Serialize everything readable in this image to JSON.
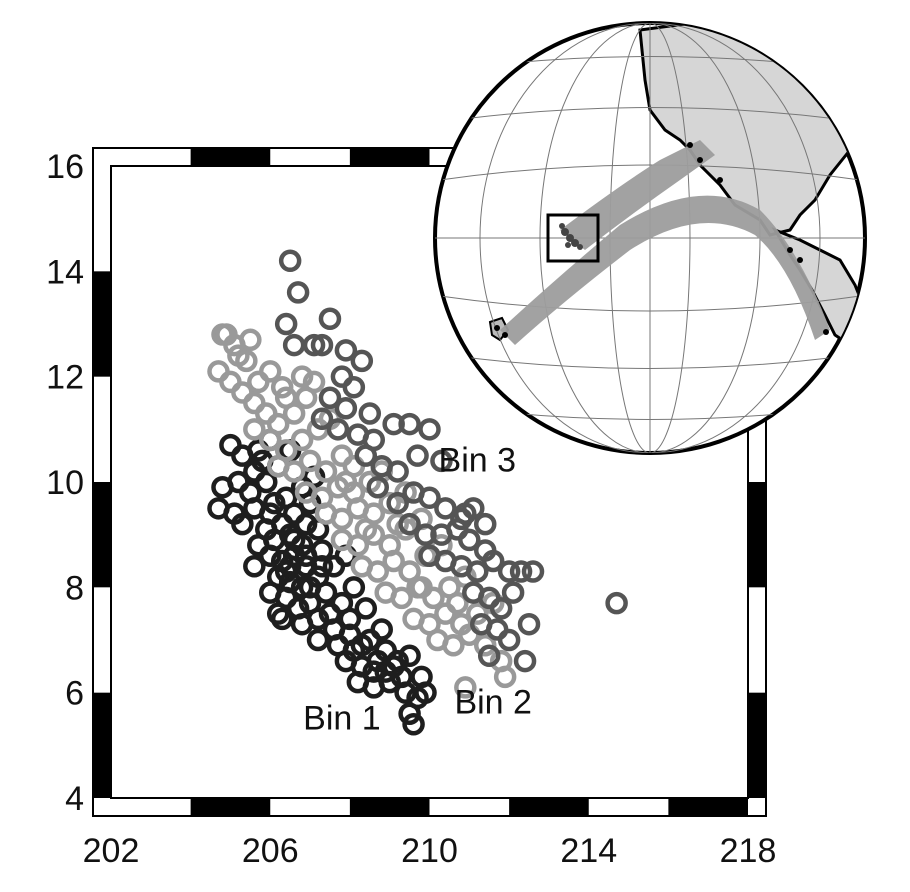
{
  "chart_data": {
    "type": "scatter",
    "title": "",
    "xlabel": "",
    "ylabel": "",
    "xlim": [
      202,
      218
    ],
    "ylim": [
      4,
      16
    ],
    "x_ticks": [
      "202",
      "206",
      "210",
      "214",
      "218"
    ],
    "y_ticks": [
      "4",
      "6",
      "8",
      "10",
      "12",
      "14",
      "16"
    ],
    "grid": false,
    "legend": "none",
    "marker": "open-circle",
    "annotations": [
      {
        "text": "Bin 1",
        "x": 207.8,
        "y": 5.3
      },
      {
        "text": "Bin 2",
        "x": 211.6,
        "y": 5.6
      },
      {
        "text": "Bin 3",
        "x": 211.2,
        "y": 10.2
      }
    ],
    "series": [
      {
        "color": "#1e1e1e",
        "points": [
          [
            205.0,
            10.7
          ],
          [
            205.3,
            10.5
          ],
          [
            205.6,
            10.2
          ],
          [
            205.2,
            10.0
          ],
          [
            204.8,
            9.9
          ],
          [
            205.5,
            9.8
          ],
          [
            205.9,
            10.0
          ],
          [
            206.2,
            10.3
          ],
          [
            205.7,
            10.6
          ],
          [
            206.0,
            10.8
          ],
          [
            204.7,
            9.5
          ],
          [
            205.1,
            9.4
          ],
          [
            205.6,
            9.5
          ],
          [
            206.0,
            9.4
          ],
          [
            206.4,
            9.7
          ],
          [
            206.8,
            9.9
          ],
          [
            205.9,
            9.1
          ],
          [
            206.3,
            9.2
          ],
          [
            206.6,
            9.4
          ],
          [
            207.0,
            9.6
          ],
          [
            205.7,
            8.8
          ],
          [
            206.1,
            8.9
          ],
          [
            206.5,
            9.0
          ],
          [
            206.8,
            8.8
          ],
          [
            207.2,
            9.1
          ],
          [
            206.0,
            8.6
          ],
          [
            206.3,
            8.5
          ],
          [
            206.6,
            8.6
          ],
          [
            206.9,
            8.4
          ],
          [
            207.3,
            8.7
          ],
          [
            205.6,
            8.4
          ],
          [
            206.2,
            8.2
          ],
          [
            206.5,
            8.1
          ],
          [
            206.8,
            8.0
          ],
          [
            207.2,
            8.2
          ],
          [
            207.6,
            8.4
          ],
          [
            207.9,
            8.6
          ],
          [
            206.0,
            7.9
          ],
          [
            206.4,
            7.8
          ],
          [
            206.7,
            7.6
          ],
          [
            207.0,
            7.7
          ],
          [
            207.4,
            7.9
          ],
          [
            207.8,
            7.7
          ],
          [
            208.1,
            8.0
          ],
          [
            206.3,
            7.4
          ],
          [
            206.8,
            7.3
          ],
          [
            207.2,
            7.4
          ],
          [
            207.6,
            7.2
          ],
          [
            208.0,
            7.4
          ],
          [
            208.4,
            7.6
          ],
          [
            207.2,
            7.0
          ],
          [
            207.7,
            6.9
          ],
          [
            208.1,
            6.8
          ],
          [
            208.5,
            7.0
          ],
          [
            208.9,
            6.8
          ],
          [
            207.9,
            6.6
          ],
          [
            208.3,
            6.5
          ],
          [
            208.7,
            6.6
          ],
          [
            209.1,
            6.5
          ],
          [
            209.5,
            6.7
          ],
          [
            208.2,
            6.2
          ],
          [
            208.6,
            6.1
          ],
          [
            209.0,
            6.2
          ],
          [
            209.4,
            6.0
          ],
          [
            209.8,
            6.3
          ],
          [
            209.5,
            5.6
          ],
          [
            209.7,
            5.9
          ],
          [
            208.9,
            6.4
          ],
          [
            209.3,
            6.3
          ],
          [
            209.9,
            6.0
          ],
          [
            206.4,
            8.3
          ],
          [
            206.6,
            8.9
          ],
          [
            206.9,
            9.2
          ],
          [
            207.3,
            8.4
          ],
          [
            205.3,
            9.2
          ],
          [
            205.8,
            10.4
          ],
          [
            206.5,
            10.6
          ],
          [
            207.1,
            10.1
          ],
          [
            206.2,
            7.5
          ],
          [
            207.5,
            7.5
          ],
          [
            208.8,
            7.2
          ],
          [
            208.0,
            7.1
          ],
          [
            206.9,
            8.6
          ],
          [
            206.5,
            8.4
          ],
          [
            207.0,
            8.0
          ],
          [
            208.3,
            6.9
          ],
          [
            208.6,
            6.4
          ],
          [
            209.2,
            6.6
          ],
          [
            209.6,
            5.4
          ],
          [
            206.1,
            9.6
          ]
        ]
      },
      {
        "color": "#999999",
        "points": [
          [
            204.8,
            12.8
          ],
          [
            205.1,
            12.6
          ],
          [
            205.4,
            12.3
          ],
          [
            204.7,
            12.1
          ],
          [
            205.0,
            11.9
          ],
          [
            205.3,
            11.7
          ],
          [
            205.7,
            11.9
          ],
          [
            206.0,
            12.1
          ],
          [
            206.3,
            11.8
          ],
          [
            205.6,
            11.5
          ],
          [
            205.9,
            11.3
          ],
          [
            206.2,
            11.1
          ],
          [
            206.6,
            11.3
          ],
          [
            206.9,
            11.6
          ],
          [
            205.6,
            11.0
          ],
          [
            206.0,
            10.8
          ],
          [
            206.4,
            10.6
          ],
          [
            206.8,
            10.8
          ],
          [
            207.2,
            11.0
          ],
          [
            207.5,
            11.2
          ],
          [
            206.2,
            10.3
          ],
          [
            206.6,
            10.2
          ],
          [
            207.0,
            10.4
          ],
          [
            207.4,
            10.2
          ],
          [
            207.8,
            10.5
          ],
          [
            208.1,
            10.3
          ],
          [
            206.9,
            9.8
          ],
          [
            207.3,
            9.7
          ],
          [
            207.7,
            9.9
          ],
          [
            208.1,
            9.8
          ],
          [
            208.5,
            10.0
          ],
          [
            208.8,
            10.2
          ],
          [
            207.4,
            9.4
          ],
          [
            207.8,
            9.3
          ],
          [
            208.2,
            9.5
          ],
          [
            208.6,
            9.4
          ],
          [
            209.0,
            9.6
          ],
          [
            209.4,
            9.8
          ],
          [
            207.8,
            8.9
          ],
          [
            208.2,
            8.8
          ],
          [
            208.6,
            9.0
          ],
          [
            209.0,
            8.8
          ],
          [
            209.4,
            9.1
          ],
          [
            209.8,
            9.3
          ],
          [
            208.3,
            8.4
          ],
          [
            208.7,
            8.3
          ],
          [
            209.1,
            8.5
          ],
          [
            209.5,
            8.3
          ],
          [
            209.9,
            8.6
          ],
          [
            210.3,
            8.8
          ],
          [
            208.9,
            7.9
          ],
          [
            209.3,
            7.8
          ],
          [
            209.7,
            8.0
          ],
          [
            210.1,
            7.8
          ],
          [
            210.5,
            8.0
          ],
          [
            210.9,
            8.2
          ],
          [
            209.6,
            7.4
          ],
          [
            210.0,
            7.3
          ],
          [
            210.4,
            7.5
          ],
          [
            210.8,
            7.3
          ],
          [
            211.2,
            7.5
          ],
          [
            211.6,
            7.7
          ],
          [
            210.2,
            7.0
          ],
          [
            210.6,
            6.9
          ],
          [
            211.0,
            7.1
          ],
          [
            211.4,
            6.9
          ],
          [
            211.8,
            6.6
          ],
          [
            210.9,
            6.1
          ],
          [
            211.9,
            6.3
          ],
          [
            209.2,
            9.2
          ],
          [
            208.4,
            9.1
          ],
          [
            207.9,
            10.0
          ],
          [
            206.4,
            11.6
          ],
          [
            205.2,
            12.4
          ],
          [
            204.9,
            12.8
          ],
          [
            205.5,
            12.7
          ],
          [
            206.8,
            12.0
          ],
          [
            207.1,
            11.9
          ],
          [
            209.8,
            8.0
          ],
          [
            210.7,
            7.7
          ]
        ]
      },
      {
        "color": "#555555",
        "points": [
          [
            206.5,
            14.2
          ],
          [
            206.7,
            13.6
          ],
          [
            206.4,
            13.0
          ],
          [
            206.6,
            12.6
          ],
          [
            207.1,
            12.6
          ],
          [
            207.5,
            13.1
          ],
          [
            207.3,
            12.6
          ],
          [
            207.9,
            12.5
          ],
          [
            208.3,
            12.3
          ],
          [
            207.8,
            12.0
          ],
          [
            208.1,
            11.8
          ],
          [
            207.5,
            11.6
          ],
          [
            207.9,
            11.4
          ],
          [
            208.5,
            11.3
          ],
          [
            207.3,
            11.2
          ],
          [
            207.7,
            11.0
          ],
          [
            208.2,
            10.9
          ],
          [
            208.6,
            10.8
          ],
          [
            209.1,
            11.1
          ],
          [
            209.5,
            11.1
          ],
          [
            210.0,
            11.0
          ],
          [
            208.4,
            10.5
          ],
          [
            208.8,
            10.3
          ],
          [
            209.2,
            10.2
          ],
          [
            209.7,
            10.5
          ],
          [
            210.3,
            10.4
          ],
          [
            208.7,
            9.9
          ],
          [
            209.2,
            9.6
          ],
          [
            209.6,
            9.8
          ],
          [
            210.0,
            9.7
          ],
          [
            210.4,
            9.5
          ],
          [
            210.8,
            9.3
          ],
          [
            211.1,
            9.5
          ],
          [
            209.5,
            9.2
          ],
          [
            209.9,
            9.0
          ],
          [
            210.3,
            9.0
          ],
          [
            210.7,
            9.1
          ],
          [
            211.0,
            8.9
          ],
          [
            211.4,
            8.7
          ],
          [
            210.0,
            8.6
          ],
          [
            210.4,
            8.5
          ],
          [
            210.8,
            8.4
          ],
          [
            211.2,
            8.3
          ],
          [
            211.6,
            8.5
          ],
          [
            212.0,
            8.3
          ],
          [
            212.3,
            8.3
          ],
          [
            212.6,
            8.3
          ],
          [
            211.1,
            7.9
          ],
          [
            211.5,
            7.8
          ],
          [
            211.8,
            7.6
          ],
          [
            212.1,
            7.9
          ],
          [
            212.5,
            7.3
          ],
          [
            211.3,
            7.3
          ],
          [
            211.7,
            7.2
          ],
          [
            212.0,
            7.0
          ],
          [
            212.4,
            6.6
          ],
          [
            211.5,
            6.7
          ],
          [
            214.7,
            7.7
          ],
          [
            210.9,
            9.4
          ],
          [
            211.4,
            9.2
          ]
        ]
      }
    ]
  },
  "inset": {
    "type": "orthographic-globe",
    "description_visible": "Globe with graticule, land in light gray, gray ray band from boxed source region toward stations in the Americas"
  }
}
